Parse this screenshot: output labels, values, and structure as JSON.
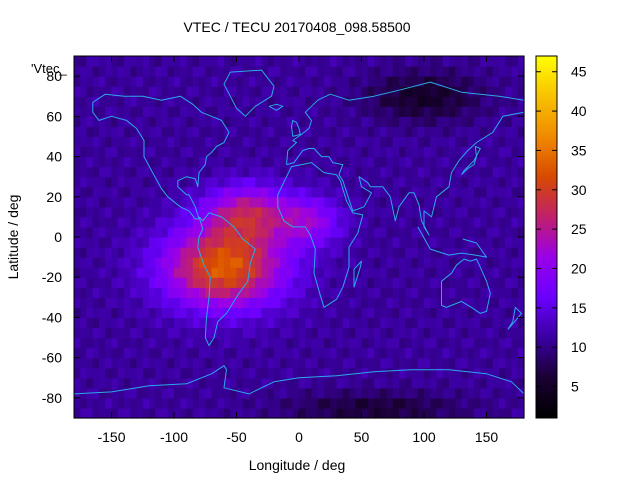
{
  "chart_data": {
    "type": "heatmap",
    "title": "VTEC / TECU 20170408_098.58500",
    "xlabel": "Longitude / deg",
    "ylabel": "Latitude / deg",
    "xlim": [
      -180,
      180
    ],
    "ylim": [
      -90,
      90
    ],
    "x_ticks": [
      -150,
      -100,
      -50,
      0,
      50,
      100,
      150
    ],
    "y_ticks": [
      -80,
      -60,
      -40,
      -20,
      0,
      20,
      40,
      60,
      80
    ],
    "x_tick_labels": [
      "-150",
      "-100",
      "-50",
      "0",
      "50",
      "100",
      "150"
    ],
    "y_tick_labels": [
      "-80",
      "-60",
      "-40",
      "-20",
      "0",
      "20",
      "40",
      "60",
      "80"
    ],
    "colorbar": {
      "range": [
        1,
        47
      ],
      "ticks": [
        5,
        10,
        15,
        20,
        25,
        30,
        35,
        40,
        45
      ],
      "tick_labels": [
        "5",
        "10",
        "15",
        "20",
        "25",
        "30",
        "35",
        "40",
        "45"
      ]
    },
    "legend": {
      "label": "'Vtec_",
      "placement": "top-left"
    },
    "grid": false,
    "field": {
      "background_tecu": 11,
      "sources": [
        {
          "lon": -60,
          "lat": -15,
          "peak_tecu": 22,
          "lon_sigma": 48,
          "lat_sigma": 20
        },
        {
          "lon": -40,
          "lat": 12,
          "peak_tecu": 14,
          "lon_sigma": 35,
          "lat_sigma": 14
        },
        {
          "lon": 10,
          "lat": 8,
          "peak_tecu": 9,
          "lon_sigma": 25,
          "lat_sigma": 12
        },
        {
          "lon": 100,
          "lat": 70,
          "peak_tecu": -6,
          "lon_sigma": 45,
          "lat_sigma": 12
        },
        {
          "lon": 60,
          "lat": -85,
          "peak_tecu": -5,
          "lon_sigma": 70,
          "lat_sigma": 8
        }
      ]
    }
  },
  "colors": {
    "coastline": "#2aa8e8",
    "palette": [
      "#000000",
      "#1a0033",
      "#3a00a0",
      "#6a00ff",
      "#9a00e8",
      "#c0206a",
      "#d84a00",
      "#f08a00",
      "#f8c200",
      "#ffff00"
    ]
  }
}
